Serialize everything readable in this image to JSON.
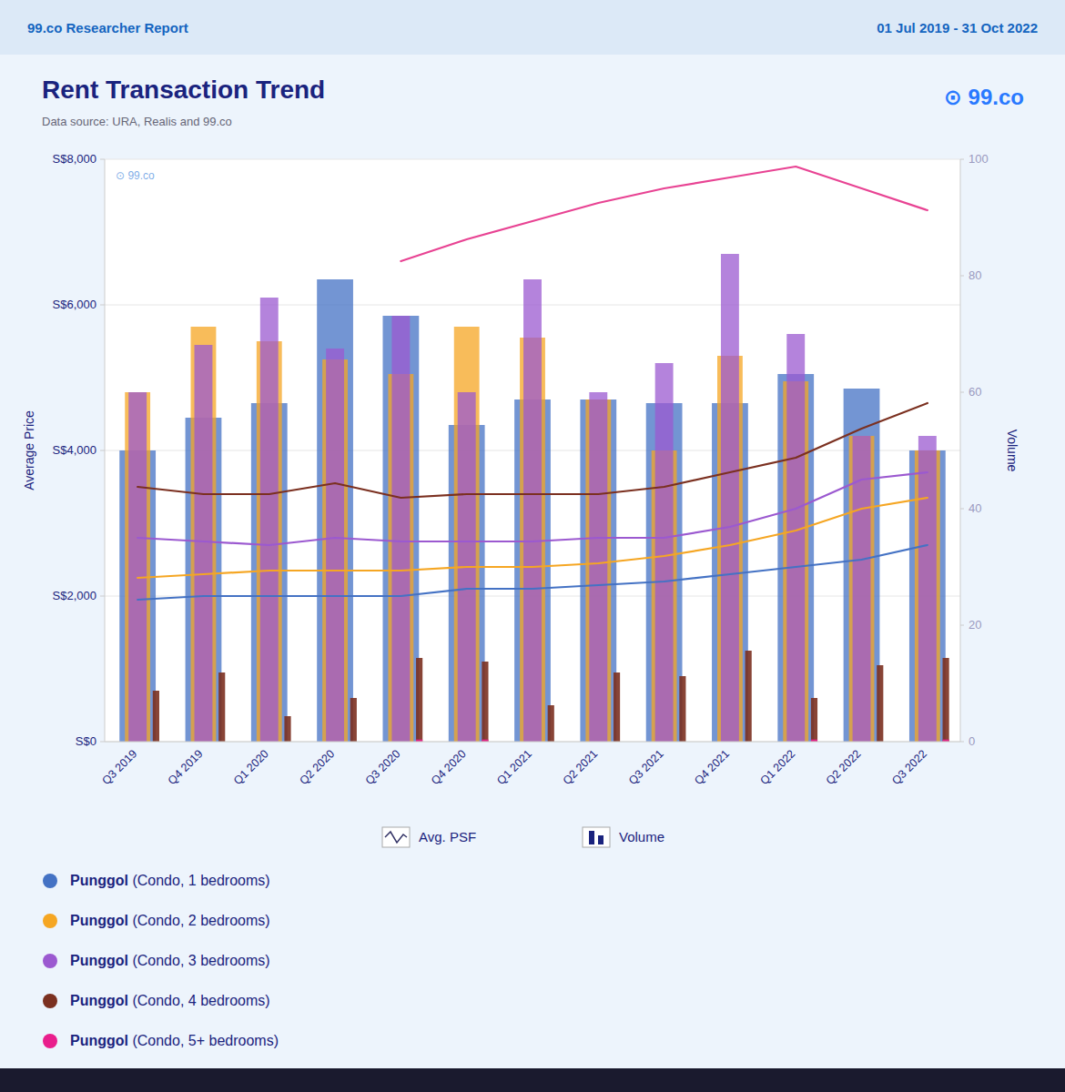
{
  "chart_data": {
    "type": "bar",
    "title": "Rent Transaction Trend",
    "subtitle": "Data source: URA, Realis and 99.co",
    "annotations": [
      "99.co Researcher Report",
      "01 Jul 2019 - 31 Oct 2022",
      "⊙ 99.co",
      "⊙ 99.co",
      "Avg. PSF",
      "Volume"
    ],
    "ylabel": "Average Price",
    "y2label": "Volume",
    "categories": [
      "Q3 2019",
      "Q4 2019",
      "Q1 2020",
      "Q2 2020",
      "Q3 2020",
      "Q4 2020",
      "Q1 2021",
      "Q2 2021",
      "Q3 2021",
      "Q4 2021",
      "Q1 2022",
      "Q2 2022",
      "Q3 2022"
    ],
    "series": [
      {
        "name": "Punggol (Condo, 1 bedrooms)",
        "type": "bar",
        "color": "#4472c4",
        "values": [
          4000,
          4450,
          4650,
          6350,
          5850,
          4350,
          4700,
          4700,
          4650,
          4650,
          5050,
          4850,
          4000
        ]
      },
      {
        "name": "Punggol (Condo, 2 bedrooms)",
        "type": "bar",
        "color": "#f5a623",
        "values": [
          4800,
          5700,
          5500,
          5250,
          5050,
          5700,
          5550,
          4700,
          4000,
          5300,
          4950,
          4200,
          4000
        ]
      },
      {
        "name": "Punggol (Condo, 3 bedrooms)",
        "type": "bar",
        "color": "#9b59d0",
        "values": [
          4800,
          5450,
          6100,
          5400,
          5850,
          4800,
          6350,
          4800,
          5200,
          6700,
          5600,
          4200,
          4200
        ]
      },
      {
        "name": "Punggol (Condo, 4 bedrooms)",
        "type": "bar",
        "color": "#7b3020",
        "values": [
          700,
          950,
          350,
          600,
          1150,
          1100,
          500,
          950,
          900,
          1250,
          600,
          1050,
          1150
        ]
      },
      {
        "name": "Punggol (Condo, 5+ bedrooms)",
        "type": "bar",
        "color": "#e91e8c",
        "values": [
          0,
          0,
          0,
          0,
          30,
          30,
          0,
          0,
          0,
          0,
          30,
          0,
          30
        ]
      },
      {
        "name": "Punggol (Condo, 1 bedrooms)",
        "type": "line",
        "color": "#4472c4",
        "values": [
          1950,
          2000,
          2000,
          2000,
          2000,
          2100,
          2100,
          2150,
          2200,
          2300,
          2400,
          2500,
          2700
        ]
      },
      {
        "name": "Punggol (Condo, 2 bedrooms)",
        "type": "line",
        "color": "#f5a623",
        "values": [
          2250,
          2300,
          2350,
          2350,
          2350,
          2400,
          2400,
          2450,
          2550,
          2700,
          2900,
          3200,
          3350
        ]
      },
      {
        "name": "Punggol (Condo, 3 bedrooms)",
        "type": "line",
        "color": "#9b59d0",
        "values": [
          2800,
          2750,
          2700,
          2800,
          2750,
          2750,
          2750,
          2800,
          2800,
          2950,
          3200,
          3600,
          3700
        ]
      },
      {
        "name": "Punggol (Condo, 4 bedrooms)",
        "type": "line",
        "color": "#7b3020",
        "values": [
          3500,
          3400,
          3400,
          3550,
          3350,
          3400,
          3400,
          3400,
          3500,
          3700,
          3900,
          4300,
          4650
        ]
      },
      {
        "type": "line",
        "color": "#e84393",
        "values": [
          null,
          null,
          null,
          null,
          6600,
          6900,
          7150,
          7400,
          7600,
          7750,
          7900,
          7600,
          7300
        ]
      }
    ],
    "ylim": [
      0,
      8000
    ],
    "yticks": [
      {
        "value": 0,
        "label": "S$0"
      },
      {
        "value": 2000,
        "label": "S$2,000"
      },
      {
        "value": 4000,
        "label": "S$4,000"
      },
      {
        "value": 6000,
        "label": "S$6,000"
      },
      {
        "value": 8000,
        "label": "S$8,000"
      }
    ],
    "y2lim": [
      0,
      100
    ],
    "y2ticks": [
      0,
      20,
      40,
      60,
      80,
      100
    ],
    "grid": true,
    "legend": "bottom"
  }
}
